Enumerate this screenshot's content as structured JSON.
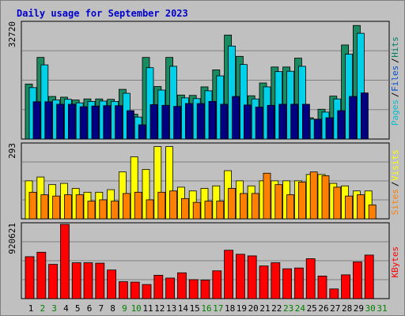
{
  "title": "Daily usage for September 2023",
  "chart_data": [
    {
      "type": "bar",
      "panel": "top",
      "ymax_label": "32720",
      "ylim": [
        0,
        32720
      ],
      "grid": true,
      "legend": [
        {
          "name": "Pages",
          "color": "#00c0d0"
        },
        {
          "name": "Files",
          "color": "#0050d0"
        },
        {
          "name": "Hits",
          "color": "#008060"
        }
      ],
      "categories": [
        "1",
        "2",
        "3",
        "4",
        "5",
        "6",
        "7",
        "8",
        "9",
        "10",
        "11",
        "12",
        "13",
        "14",
        "15",
        "16",
        "17",
        "18",
        "19",
        "20",
        "21",
        "22",
        "23",
        "24",
        "25",
        "26",
        "27",
        "28",
        "29",
        "30",
        "31"
      ],
      "series": [
        {
          "name": "Hits",
          "color": "#1a8a60",
          "values": [
            15500,
            23000,
            12000,
            11800,
            11000,
            11300,
            11300,
            11200,
            14000,
            7000,
            23000,
            14800,
            23000,
            12400,
            12300,
            14700,
            19500,
            29300,
            23300,
            12200,
            15800,
            20300,
            20300,
            22800,
            6000,
            8400,
            12100,
            26500,
            32000,
            0,
            0
          ]
        },
        {
          "name": "Files",
          "color": "#00d0e8",
          "values": [
            14500,
            20900,
            11000,
            11200,
            10200,
            10600,
            10700,
            10600,
            12900,
            6200,
            20100,
            13800,
            20500,
            11600,
            11400,
            13600,
            17800,
            26200,
            21000,
            11300,
            14700,
            19000,
            19100,
            20500,
            5600,
            7600,
            11300,
            23900,
            29800,
            0,
            0
          ]
        },
        {
          "name": "Pages",
          "color": "#000080",
          "values": [
            10500,
            10500,
            9800,
            9800,
            9100,
            9300,
            9400,
            9400,
            8000,
            4000,
            9700,
            9500,
            9200,
            10000,
            10000,
            10600,
            9800,
            12000,
            9600,
            9000,
            9500,
            9800,
            9800,
            9800,
            5600,
            6000,
            8000,
            12000,
            13000,
            0,
            0
          ]
        }
      ]
    },
    {
      "type": "bar",
      "panel": "middle",
      "ymax_label": "293",
      "ylim": [
        0,
        293
      ],
      "grid": true,
      "legend": [
        {
          "name": "Sites",
          "color": "#ff8000"
        },
        {
          "name": "Visits",
          "color": "#ffff00"
        }
      ],
      "categories": [
        "1",
        "2",
        "3",
        "4",
        "5",
        "6",
        "7",
        "8",
        "9",
        "10",
        "11",
        "12",
        "13",
        "14",
        "15",
        "16",
        "17",
        "18",
        "19",
        "20",
        "21",
        "22",
        "23",
        "24",
        "25",
        "26",
        "27",
        "28",
        "29",
        "30",
        "31"
      ],
      "series": [
        {
          "name": "Visits",
          "color": "#ffff00",
          "values": [
            150,
            165,
            135,
            140,
            120,
            105,
            105,
            115,
            185,
            245,
            195,
            285,
            285,
            125,
            110,
            120,
            130,
            190,
            150,
            130,
            150,
            150,
            150,
            150,
            175,
            175,
            140,
            130,
            110,
            110,
            0
          ]
        },
        {
          "name": "Sites",
          "color": "#ff8000",
          "values": [
            105,
            95,
            90,
            95,
            95,
            70,
            75,
            70,
            100,
            105,
            75,
            105,
            110,
            80,
            65,
            70,
            70,
            120,
            100,
            100,
            180,
            135,
            95,
            145,
            185,
            170,
            125,
            90,
            95,
            55,
            0
          ]
        }
      ]
    },
    {
      "type": "bar",
      "panel": "bottom",
      "ymax_label": "920621",
      "ylim": [
        0,
        920621
      ],
      "grid": true,
      "legend": [
        {
          "name": "KBytes",
          "color": "#ff0000"
        }
      ],
      "categories": [
        "1",
        "2",
        "3",
        "4",
        "5",
        "6",
        "7",
        "8",
        "9",
        "10",
        "11",
        "12",
        "13",
        "14",
        "15",
        "16",
        "17",
        "18",
        "19",
        "20",
        "21",
        "22",
        "23",
        "24",
        "25",
        "26",
        "27",
        "28",
        "29",
        "30",
        "31"
      ],
      "series": [
        {
          "name": "KBytes",
          "color": "#ff0000",
          "values": [
            520000,
            575000,
            425000,
            920621,
            445000,
            445000,
            440000,
            355000,
            210000,
            205000,
            175000,
            290000,
            255000,
            320000,
            235000,
            230000,
            345000,
            600000,
            550000,
            530000,
            405000,
            445000,
            370000,
            380000,
            495000,
            280000,
            120000,
            295000,
            455000,
            540000,
            0
          ]
        }
      ]
    }
  ]
}
